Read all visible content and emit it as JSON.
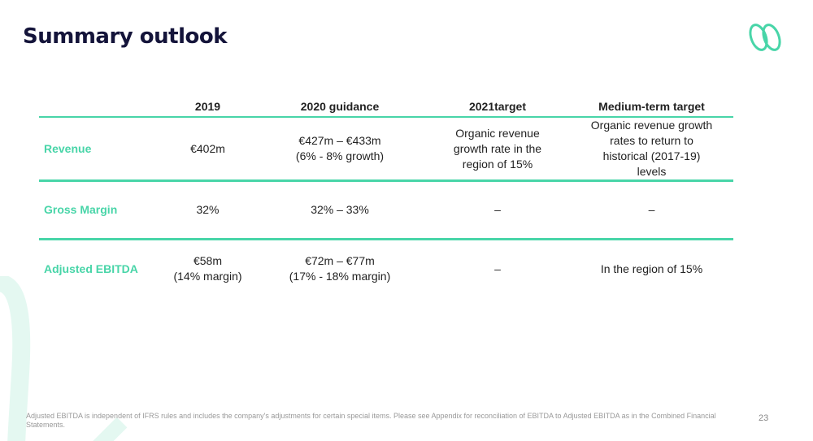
{
  "title": "Summary outlook",
  "brand_color": "#48d5a8",
  "table": {
    "headers": [
      "",
      "2019",
      "2020 guidance",
      "2021target",
      "Medium-term target"
    ],
    "rows": [
      {
        "label": "Revenue",
        "cells": [
          "€402m",
          "€427m – €433m\n(6% - 8% growth)",
          "Organic revenue growth rate in the region of 15%",
          "Organic revenue growth rates to return to historical (2017-19) levels"
        ]
      },
      {
        "label": "Gross Margin",
        "cells": [
          "32%",
          "32% – 33%",
          "–",
          "–"
        ]
      },
      {
        "label": "Adjusted EBITDA",
        "cells": [
          "€58m\n(14% margin)",
          "€72m – €77m\n(17% - 18% margin)",
          "–",
          "In the region of 15%"
        ]
      }
    ]
  },
  "footnote": "Adjusted EBITDA is independent of IFRS rules and includes the company's adjustments for certain special items. Please see Appendix for reconciliation of EBITDA to Adjusted EBITDA as in the Combined Financial Statements.",
  "page_number": "23"
}
